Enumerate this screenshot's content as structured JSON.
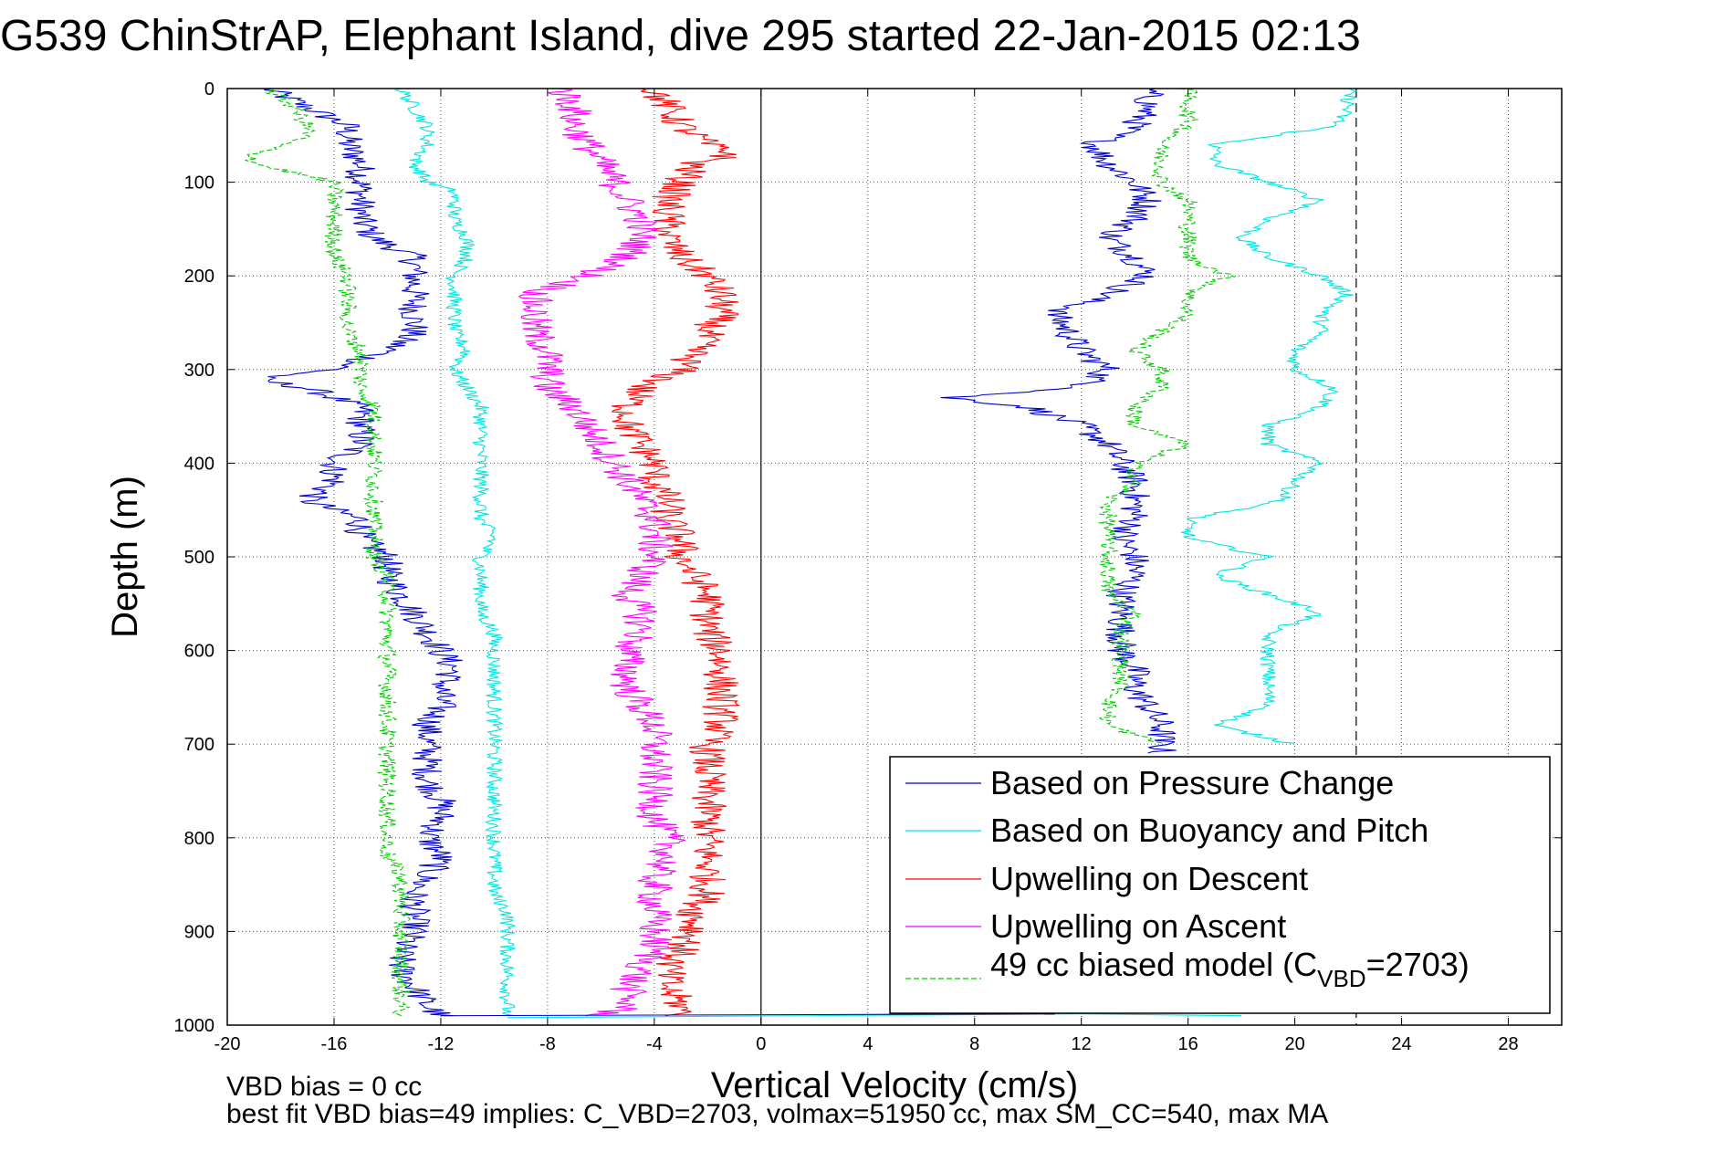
{
  "chart_data": {
    "type": "line",
    "title": "G539 ChinStrAP, Elephant Island, dive 295 started 22-Jan-2015 02:13",
    "xlabel": "Vertical Velocity (cm/s)",
    "ylabel": "Depth (m)",
    "xlim": [
      -20,
      30
    ],
    "ylim": [
      0,
      1000
    ],
    "y_reversed": true,
    "grid": true,
    "legend_position": "bottom-right",
    "xticks": [
      -20,
      -16,
      -12,
      -8,
      -4,
      0,
      4,
      8,
      12,
      16,
      20,
      24,
      28
    ],
    "yticks": [
      0,
      100,
      200,
      300,
      400,
      500,
      600,
      700,
      800,
      900,
      1000
    ],
    "reference_lines": {
      "zero_line_x": 0,
      "dashed_line_x": 22.3
    },
    "notes": [
      "VBD bias = 0 cc",
      "best fit VBD bias=49 implies: C_VBD=2703, volmax=51950 cc, max SM_CC=540, max MA"
    ],
    "legend": [
      {
        "label": "Based on Pressure Change",
        "color": "#0000cc",
        "style": "solid"
      },
      {
        "label": "Based on Buoyancy and Pitch",
        "color": "#00e5e5",
        "style": "solid"
      },
      {
        "label": "Upwelling on Descent",
        "color": "#ff0000",
        "style": "solid"
      },
      {
        "label": "Upwelling on Ascent",
        "color": "#ff00ff",
        "style": "solid"
      },
      {
        "label_main": "49 cc biased model (C",
        "label_sub": "VBD",
        "label_end": "=2703)",
        "color": "#00cc00",
        "style": "dashed"
      }
    ],
    "series": [
      {
        "name": "Based on Pressure Change",
        "color": "#0000cc",
        "style": "solid",
        "noise": 0.6,
        "branches": [
          {
            "depth": [
              0,
              20,
              40,
              60,
              80,
              100,
              120,
              140,
              160,
              180,
              200,
              220,
              240,
              260,
              280,
              300,
              310,
              320,
              340,
              360,
              380,
              400,
              420,
              440,
              460,
              480,
              500,
              520,
              540,
              560,
              580,
              600,
              620,
              640,
              660,
              680,
              700,
              720,
              740,
              760,
              780,
              800,
              820,
              840,
              860,
              880,
              900,
              920,
              940,
              960,
              980,
              990
            ],
            "x": [
              -18.5,
              -17,
              -15.5,
              -15.5,
              -15,
              -15,
              -15,
              -15,
              -14.5,
              -13,
              -13,
              -13,
              -13,
              -13,
              -14,
              -16,
              -19,
              -17,
              -15,
              -15,
              -15,
              -16,
              -16,
              -17,
              -15,
              -15,
              -14,
              -14,
              -13.5,
              -13,
              -12.5,
              -12,
              -11.5,
              -12,
              -12,
              -12.5,
              -12.5,
              -12.5,
              -12.5,
              -12,
              -12,
              -12.5,
              -12,
              -12.5,
              -13,
              -13,
              -13,
              -13.5,
              -13.5,
              -13,
              -12.5,
              -12
            ]
          },
          {
            "depth": [
              0,
              20,
              40,
              60,
              80,
              100,
              120,
              140,
              160,
              180,
              200,
              220,
              240,
              260,
              280,
              300,
              320,
              330,
              340,
              360,
              380,
              400,
              420,
              440,
              460,
              480,
              500,
              520,
              540,
              560,
              580,
              600,
              620,
              640,
              660,
              680,
              700,
              710
            ],
            "x": [
              14.5,
              14.5,
              14,
              12.5,
              13,
              14,
              14.5,
              14,
              13,
              14,
              14.5,
              13,
              11,
              11.5,
              12,
              13,
              12,
              7,
              10,
              12,
              13,
              13.5,
              14,
              14,
              14,
              13.5,
              14,
              14,
              13.5,
              13.5,
              13.5,
              13.5,
              14,
              14,
              14.5,
              15,
              15,
              15
            ]
          }
        ]
      },
      {
        "name": "Based on Buoyancy and Pitch",
        "color": "#00e5e5",
        "style": "solid",
        "noise": 0.3,
        "branches": [
          {
            "depth": [
              0,
              20,
              40,
              60,
              80,
              100,
              110,
              120,
              140,
              160,
              180,
              200,
              220,
              240,
              260,
              280,
              300,
              320,
              340,
              360,
              380,
              400,
              420,
              440,
              460,
              480,
              500,
              520,
              540,
              560,
              580,
              600,
              620,
              640,
              660,
              680,
              700,
              720,
              740,
              760,
              780,
              800,
              820,
              840,
              860,
              880,
              900,
              920,
              940,
              960,
              980,
              990
            ],
            "x": [
              -13.5,
              -13,
              -12.5,
              -12.5,
              -13,
              -12.5,
              -11.5,
              -11.5,
              -11.5,
              -11,
              -11,
              -11.5,
              -11.5,
              -11.5,
              -11.5,
              -11,
              -11.5,
              -11,
              -10.5,
              -10.5,
              -10.5,
              -10.5,
              -10.5,
              -10.5,
              -10.5,
              -10,
              -10.5,
              -10.5,
              -10.5,
              -10.5,
              -10,
              -10,
              -10,
              -10,
              -10,
              -10,
              -10,
              -10,
              -10,
              -10,
              -10,
              -10,
              -10,
              -10,
              -10,
              -9.5,
              -9.5,
              -9.5,
              -9.5,
              -9.5,
              -9.5,
              -9.5
            ]
          },
          {
            "depth": [
              0,
              20,
              40,
              60,
              80,
              100,
              120,
              140,
              160,
              180,
              200,
              220,
              240,
              260,
              280,
              300,
              320,
              340,
              360,
              380,
              400,
              420,
              440,
              460,
              480,
              500,
              520,
              540,
              560,
              580,
              600,
              620,
              640,
              660,
              680,
              700
            ],
            "x": [
              22,
              22,
              21.5,
              17,
              17,
              19,
              21,
              19,
              18,
              19,
              21,
              22,
              21,
              21,
              20,
              20,
              21.5,
              21,
              19,
              19,
              21,
              20,
              19.5,
              16,
              16,
              19,
              17,
              19,
              21,
              19,
              19,
              19,
              19,
              19,
              17,
              20
            ]
          }
        ]
      },
      {
        "name": "Upwelling on Descent",
        "color": "#ff0000",
        "style": "solid",
        "noise": 0.7,
        "branches": [
          {
            "depth": [
              0,
              20,
              40,
              60,
              70,
              80,
              100,
              120,
              140,
              160,
              180,
              200,
              220,
              240,
              260,
              280,
              300,
              320,
              340,
              360,
              380,
              400,
              420,
              440,
              460,
              480,
              500,
              520,
              540,
              560,
              580,
              600,
              620,
              640,
              660,
              680,
              700,
              720,
              740,
              760,
              780,
              800,
              820,
              840,
              860,
              880,
              900,
              920,
              940,
              960,
              980,
              990
            ],
            "x": [
              -4,
              -3.5,
              -3,
              -2,
              -1,
              -2.5,
              -3,
              -3.5,
              -3.5,
              -3.5,
              -3,
              -2,
              -1.5,
              -1.5,
              -2,
              -2.5,
              -3,
              -4.5,
              -5,
              -5,
              -4.5,
              -4,
              -4,
              -3.5,
              -3.5,
              -3,
              -3,
              -2.5,
              -2,
              -2,
              -2,
              -1.5,
              -1.5,
              -1.5,
              -1.5,
              -1.5,
              -2,
              -2,
              -2,
              -2,
              -2,
              -2,
              -2,
              -2,
              -2,
              -2.5,
              -2.5,
              -3,
              -3.5,
              -3.5,
              -3,
              -3
            ]
          }
        ]
      },
      {
        "name": "Upwelling on Ascent",
        "color": "#ff00ff",
        "style": "solid",
        "noise": 0.7,
        "branches": [
          {
            "depth": [
              0,
              20,
              40,
              60,
              80,
              100,
              120,
              140,
              160,
              180,
              200,
              220,
              240,
              260,
              280,
              300,
              320,
              340,
              360,
              380,
              400,
              420,
              440,
              460,
              480,
              500,
              520,
              540,
              560,
              580,
              600,
              620,
              640,
              660,
              680,
              700,
              720,
              740,
              760,
              780,
              800,
              820,
              840,
              860,
              880,
              900,
              920,
              940,
              960,
              980,
              990
            ],
            "x": [
              -7.5,
              -7,
              -7,
              -6.5,
              -6,
              -5.5,
              -5,
              -4.5,
              -4.5,
              -5,
              -6.5,
              -8.5,
              -8.5,
              -8.5,
              -8,
              -8,
              -8,
              -7,
              -6.5,
              -6,
              -5.5,
              -5,
              -4.5,
              -4,
              -4,
              -4,
              -4.5,
              -5,
              -4.5,
              -4.5,
              -5,
              -5,
              -5,
              -4.5,
              -4,
              -4,
              -4,
              -4,
              -4,
              -4,
              -3.5,
              -3.5,
              -4,
              -4,
              -4,
              -4,
              -4,
              -4.5,
              -5,
              -5,
              -6
            ]
          }
        ]
      },
      {
        "name": "49 cc biased model (CVBD=2703)",
        "color": "#00cc00",
        "style": "dashed",
        "noise": 0.35,
        "branches": [
          {
            "depth": [
              0,
              20,
              40,
              50,
              60,
              70,
              80,
              100,
              120,
              140,
              160,
              180,
              200,
              220,
              240,
              260,
              280,
              300,
              320,
              340,
              360,
              380,
              400,
              420,
              440,
              460,
              480,
              500,
              520,
              540,
              560,
              580,
              600,
              620,
              640,
              660,
              680,
              700,
              720,
              740,
              760,
              780,
              800,
              820,
              840,
              860,
              880,
              900,
              920,
              940,
              960,
              980,
              990
            ],
            "x": [
              -18.5,
              -17.5,
              -17,
              -17,
              -18,
              -19,
              -19,
              -16,
              -16,
              -16,
              -16,
              -16,
              -15.5,
              -15.5,
              -15.5,
              -15.5,
              -15,
              -15,
              -15,
              -14.5,
              -14.5,
              -14.5,
              -14.5,
              -14.5,
              -14.5,
              -14.5,
              -14.5,
              -14.5,
              -14,
              -14,
              -14,
              -14,
              -14,
              -14,
              -14,
              -14,
              -14,
              -14,
              -14,
              -14,
              -14,
              -14,
              -14,
              -14,
              -13.5,
              -13.5,
              -13.5,
              -13.5,
              -13.5,
              -13.5,
              -13.5,
              -13.5,
              -13.5
            ]
          },
          {
            "depth": [
              0,
              20,
              40,
              60,
              80,
              100,
              120,
              140,
              160,
              180,
              200,
              220,
              240,
              260,
              280,
              300,
              320,
              340,
              360,
              380,
              400,
              420,
              440,
              460,
              480,
              500,
              520,
              540,
              560,
              580,
              600,
              620,
              640,
              660,
              680,
              700
            ],
            "x": [
              16,
              16,
              16,
              15,
              15,
              15,
              16,
              16,
              16,
              16,
              17.5,
              16,
              16,
              15,
              14,
              15,
              15,
              14,
              14,
              16,
              14,
              14,
              13,
              13,
              13,
              13,
              13,
              13,
              14,
              13.5,
              13.5,
              13.5,
              13.5,
              13,
              13,
              15
            ]
          }
        ]
      },
      {
        "name": "surface transient",
        "color": "#ff00ff",
        "style": "solid",
        "noise": 0,
        "branches": [
          {
            "depth": [
              0,
              0
            ],
            "x": [
              -20,
              2
            ]
          }
        ]
      },
      {
        "name": "surface transient cyan",
        "color": "#00e5e5",
        "style": "solid",
        "noise": 0,
        "branches": [
          {
            "depth": [
              0,
              0
            ],
            "x": [
              10,
              29
            ]
          }
        ]
      },
      {
        "name": "bottom transient",
        "color": "#00e5e5",
        "style": "solid",
        "noise": 0,
        "branches": [
          {
            "depth": [
              992,
              988,
              990
            ],
            "x": [
              -9.5,
              12,
              18
            ]
          }
        ]
      },
      {
        "name": "bottom transient blue",
        "color": "#0000cc",
        "style": "solid",
        "noise": 0,
        "branches": [
          {
            "depth": [
              990,
              988
            ],
            "x": [
              -12,
              11
            ]
          }
        ]
      }
    ]
  }
}
